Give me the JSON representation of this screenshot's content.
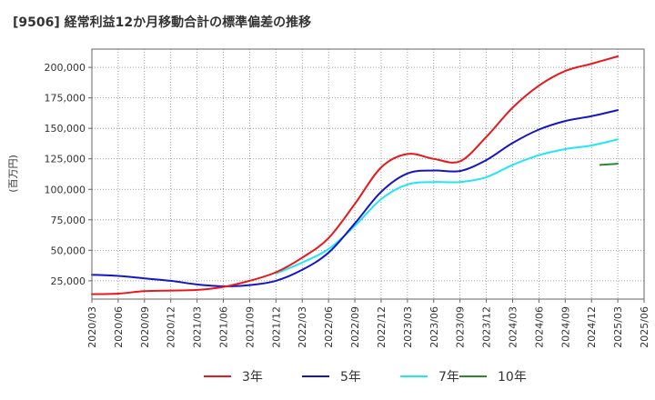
{
  "chart_data": {
    "type": "line",
    "title": "[9506]  経常利益12か月移動合計の標準偏差の推移",
    "ylabel": "(百万円)",
    "xlabel": "",
    "ylim": [
      10000,
      215000
    ],
    "xlim": [
      "2020/03",
      "2025/06"
    ],
    "grid": true,
    "legend_position": "bottom",
    "yticks": [
      25000,
      50000,
      75000,
      100000,
      125000,
      150000,
      175000,
      200000
    ],
    "ytick_labels": [
      "25,000",
      "50,000",
      "75,000",
      "100,000",
      "125,000",
      "150,000",
      "175,000",
      "200,000"
    ],
    "xticks": [
      "2020/03",
      "2020/06",
      "2020/09",
      "2020/12",
      "2021/03",
      "2021/06",
      "2021/09",
      "2021/12",
      "2022/03",
      "2022/06",
      "2022/09",
      "2022/12",
      "2023/03",
      "2023/06",
      "2023/09",
      "2023/12",
      "2024/03",
      "2024/06",
      "2024/09",
      "2024/12",
      "2025/03",
      "2025/06"
    ],
    "series": [
      {
        "name": "3年",
        "color": "#e8191c",
        "points": [
          [
            "2020/03",
            14000
          ],
          [
            "2020/06",
            14500
          ],
          [
            "2020/09",
            16500
          ],
          [
            "2020/12",
            17000
          ],
          [
            "2021/03",
            17500
          ],
          [
            "2021/06",
            20000
          ],
          [
            "2021/09",
            25000
          ],
          [
            "2021/12",
            32000
          ],
          [
            "2022/03",
            44000
          ],
          [
            "2022/06",
            60000
          ],
          [
            "2022/09",
            88000
          ],
          [
            "2022/12",
            118000
          ],
          [
            "2023/03",
            129000
          ],
          [
            "2023/06",
            125000
          ],
          [
            "2023/09",
            123000
          ],
          [
            "2023/12",
            143000
          ],
          [
            "2024/03",
            167000
          ],
          [
            "2024/06",
            185000
          ],
          [
            "2024/09",
            197000
          ],
          [
            "2024/12",
            203000
          ],
          [
            "2025/03",
            209000
          ]
        ]
      },
      {
        "name": "5年",
        "color": "#1515c8",
        "points": [
          [
            "2020/03",
            30000
          ],
          [
            "2020/06",
            29000
          ],
          [
            "2020/09",
            27000
          ],
          [
            "2020/12",
            25000
          ],
          [
            "2021/03",
            22000
          ],
          [
            "2021/06",
            20500
          ],
          [
            "2021/09",
            21500
          ],
          [
            "2021/12",
            25000
          ],
          [
            "2022/03",
            34000
          ],
          [
            "2022/06",
            48000
          ],
          [
            "2022/09",
            72000
          ],
          [
            "2022/12",
            98000
          ],
          [
            "2023/03",
            113000
          ],
          [
            "2023/06",
            115500
          ],
          [
            "2023/09",
            115000
          ],
          [
            "2023/12",
            124000
          ],
          [
            "2024/03",
            138000
          ],
          [
            "2024/06",
            149000
          ],
          [
            "2024/09",
            156000
          ],
          [
            "2024/12",
            160000
          ],
          [
            "2025/03",
            165000
          ]
        ]
      },
      {
        "name": "7年",
        "color": "#22e6f2",
        "points": [
          [
            "2021/12",
            31000
          ],
          [
            "2022/03",
            40000
          ],
          [
            "2022/06",
            51000
          ],
          [
            "2022/09",
            70000
          ],
          [
            "2022/12",
            92000
          ],
          [
            "2023/03",
            104000
          ],
          [
            "2023/06",
            106000
          ],
          [
            "2023/09",
            106000
          ],
          [
            "2023/12",
            110000
          ],
          [
            "2024/03",
            120000
          ],
          [
            "2024/06",
            128000
          ],
          [
            "2024/09",
            133000
          ],
          [
            "2024/12",
            136000
          ],
          [
            "2025/03",
            141000
          ]
        ]
      },
      {
        "name": "10年",
        "color": "#2a8a2a",
        "points": [
          [
            "2025/01",
            120000
          ],
          [
            "2025/03",
            121000
          ]
        ]
      }
    ]
  }
}
